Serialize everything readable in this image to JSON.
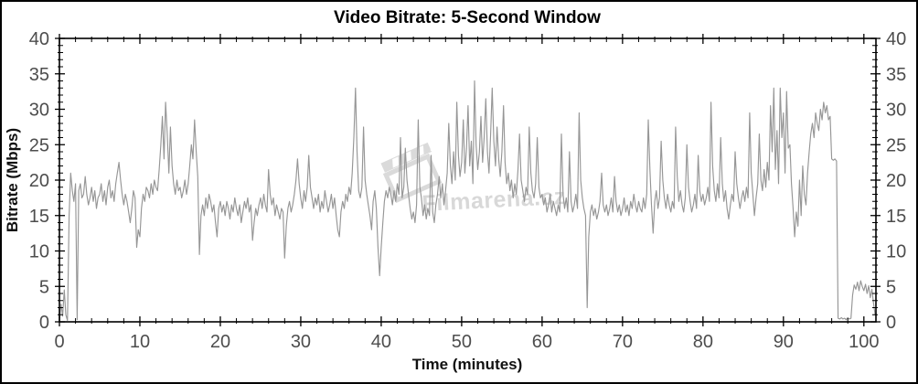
{
  "watermark": {
    "text": "Filmarena.cz",
    "icon": "clapperboard-icon"
  },
  "colors": {
    "series": "#969696",
    "frame": "#000000",
    "tick_label": "#4d4d4d",
    "title": "#000000",
    "watermark": "#d2d2d2",
    "background": "#ffffff"
  },
  "chart_data": {
    "type": "line",
    "title": "Video Bitrate: 5-Second Window",
    "xlabel": "Time (minutes)",
    "ylabel": "Bitrate (Mbps)",
    "xlim": [
      0,
      101.5
    ],
    "ylim": [
      0,
      40
    ],
    "xticks": [
      0,
      10,
      20,
      30,
      40,
      50,
      60,
      70,
      80,
      90,
      100
    ],
    "yticks": [
      0,
      5,
      10,
      15,
      20,
      25,
      30,
      35,
      40
    ],
    "x_minor_step": 2,
    "y_minor_step": 1,
    "grid": false,
    "legend": "none",
    "right_axis_mirrors_left": true,
    "series": [
      {
        "name": "video-bitrate-5s-window",
        "unit": "Mbps",
        "t0": 0,
        "dt": 0.2,
        "values": [
          0.3,
          2.5,
          0.8,
          4.5,
          1.0,
          0.2,
          15.0,
          21.0,
          18.5,
          17.0,
          19.5,
          0.3,
          18.5,
          19.5,
          17.5,
          18.0,
          20.5,
          18.0,
          16.5,
          17.5,
          19.0,
          17.0,
          18.5,
          16.0,
          17.5,
          18.0,
          19.5,
          17.0,
          18.5,
          16.5,
          19.0,
          20.0,
          17.5,
          18.5,
          17.0,
          19.5,
          21.0,
          22.5,
          20.0,
          18.0,
          16.5,
          18.0,
          17.0,
          15.5,
          14.0,
          16.0,
          18.5,
          17.5,
          10.5,
          13.0,
          12.0,
          16.0,
          18.0,
          17.0,
          19.0,
          18.5,
          17.5,
          19.5,
          18.0,
          20.0,
          19.0,
          18.5,
          21.5,
          25.0,
          29.0,
          23.0,
          31.0,
          26.5,
          21.0,
          27.5,
          22.0,
          19.5,
          18.0,
          20.0,
          18.5,
          19.0,
          17.5,
          18.5,
          20.0,
          18.0,
          19.5,
          22.0,
          25.0,
          23.0,
          28.5,
          24.0,
          20.5,
          9.5,
          15.0,
          16.5,
          15.0,
          17.5,
          16.0,
          18.0,
          17.0,
          15.5,
          16.5,
          14.0,
          12.0,
          16.0,
          17.0,
          15.5,
          16.5,
          15.0,
          17.0,
          16.0,
          14.5,
          16.5,
          15.5,
          17.5,
          16.0,
          15.0,
          16.5,
          14.0,
          15.5,
          17.0,
          16.0,
          17.5,
          15.5,
          16.5,
          11.5,
          14.0,
          16.0,
          15.0,
          16.5,
          17.5,
          16.0,
          18.0,
          16.5,
          15.5,
          21.5,
          18.0,
          16.5,
          17.5,
          15.0,
          16.5,
          15.5,
          14.5,
          16.0,
          15.5,
          9.0,
          13.5,
          16.0,
          17.0,
          15.5,
          16.5,
          18.0,
          20.0,
          23.0,
          19.5,
          17.5,
          16.0,
          18.5,
          17.0,
          19.0,
          23.5,
          19.0,
          17.5,
          16.0,
          17.5,
          16.5,
          18.0,
          15.5,
          17.0,
          16.0,
          18.5,
          17.0,
          15.5,
          16.5,
          18.0,
          16.0,
          17.5,
          15.0,
          13.0,
          12.0,
          15.5,
          17.0,
          16.0,
          18.0,
          17.0,
          19.0,
          18.0,
          21.0,
          26.0,
          33.0,
          24.0,
          18.5,
          17.5,
          19.0,
          27.5,
          20.0,
          18.0,
          16.5,
          15.0,
          13.0,
          17.0,
          18.5,
          16.0,
          10.5,
          6.5,
          10.5,
          14.0,
          17.0,
          18.5,
          17.5,
          19.0,
          18.0,
          16.5,
          18.5,
          17.0,
          19.5,
          18.0,
          26.0,
          17.5,
          19.0,
          24.5,
          20.0,
          18.0,
          16.0,
          14.5,
          15.5,
          14.0,
          16.5,
          28.5,
          19.0,
          17.5,
          15.0,
          16.5,
          14.5,
          16.0,
          15.0,
          23.5,
          15.5,
          14.0,
          16.5,
          18.0,
          20.5,
          17.5,
          19.5,
          16.5,
          18.5,
          21.0,
          28.0,
          22.0,
          19.5,
          24.0,
          20.0,
          31.0,
          23.5,
          20.5,
          22.5,
          28.5,
          21.0,
          24.5,
          30.5,
          22.0,
          25.5,
          19.5,
          34.0,
          25.0,
          21.5,
          24.0,
          29.0,
          22.5,
          26.0,
          31.5,
          24.0,
          21.0,
          26.5,
          33.0,
          25.5,
          22.0,
          27.5,
          23.0,
          20.5,
          24.0,
          30.5,
          22.5,
          19.5,
          21.0,
          18.5,
          20.0,
          17.5,
          19.5,
          18.0,
          21.5,
          26.5,
          20.0,
          18.5,
          17.0,
          19.0,
          18.0,
          27.5,
          21.0,
          18.5,
          17.5,
          19.5,
          26.0,
          19.0,
          17.5,
          18.0,
          16.5,
          17.5,
          15.5,
          16.5,
          18.0,
          15.5,
          17.0,
          16.0,
          15.0,
          16.5,
          15.5,
          26.5,
          18.0,
          16.0,
          17.5,
          15.5,
          24.0,
          17.0,
          15.5,
          16.5,
          18.0,
          16.0,
          29.5,
          20.0,
          17.5,
          16.0,
          15.0,
          2.0,
          12.0,
          15.5,
          16.5,
          15.0,
          16.0,
          14.5,
          15.5,
          17.0,
          21.0,
          16.5,
          15.5,
          16.5,
          15.0,
          16.0,
          17.5,
          15.5,
          20.5,
          17.0,
          15.5,
          16.5,
          15.0,
          16.0,
          17.5,
          15.5,
          16.5,
          15.0,
          17.0,
          16.0,
          18.0,
          16.5,
          15.5,
          17.0,
          16.0,
          15.5,
          17.5,
          16.0,
          18.0,
          28.5,
          21.5,
          16.5,
          12.5,
          17.0,
          18.5,
          16.0,
          17.5,
          25.5,
          20.0,
          17.5,
          16.0,
          18.0,
          16.5,
          15.5,
          17.0,
          16.0,
          27.5,
          20.5,
          17.0,
          18.5,
          16.5,
          15.5,
          17.5,
          25.0,
          19.0,
          17.0,
          15.5,
          16.5,
          18.0,
          16.0,
          23.5,
          18.5,
          17.0,
          18.0,
          16.5,
          17.5,
          19.0,
          17.0,
          31.0,
          22.0,
          18.5,
          17.0,
          19.5,
          17.5,
          26.0,
          19.5,
          17.0,
          18.5,
          16.0,
          14.5,
          16.5,
          18.0,
          17.0,
          24.0,
          19.5,
          17.5,
          16.0,
          17.5,
          18.5,
          17.0,
          19.0,
          17.5,
          29.5,
          21.0,
          18.0,
          15.0,
          17.5,
          19.5,
          26.5,
          20.0,
          18.5,
          21.5,
          19.0,
          22.5,
          20.0,
          30.5,
          24.0,
          33.0,
          21.5,
          27.0,
          19.5,
          33.0,
          26.0,
          29.5,
          21.0,
          32.5,
          24.5,
          25.0,
          19.5,
          16.0,
          12.0,
          15.5,
          13.5,
          20.0,
          15.0,
          22.0,
          18.0,
          16.5,
          21.0,
          24.0,
          26.5,
          28.0,
          26.0,
          29.5,
          28.0,
          27.0,
          30.0,
          28.5,
          31.0,
          29.5,
          30.5,
          28.5,
          29.0,
          23.0,
          22.8,
          23.0,
          22.7,
          0.5,
          0.4,
          0.6,
          0.4,
          0.5,
          0.3,
          0.6,
          0.4,
          0.5,
          3.8,
          5.2,
          4.6,
          5.6,
          4.4,
          5.8,
          5.0,
          4.4,
          5.3,
          4.0,
          5.1,
          3.4,
          4.6,
          2.6,
          1.0
        ]
      }
    ]
  }
}
